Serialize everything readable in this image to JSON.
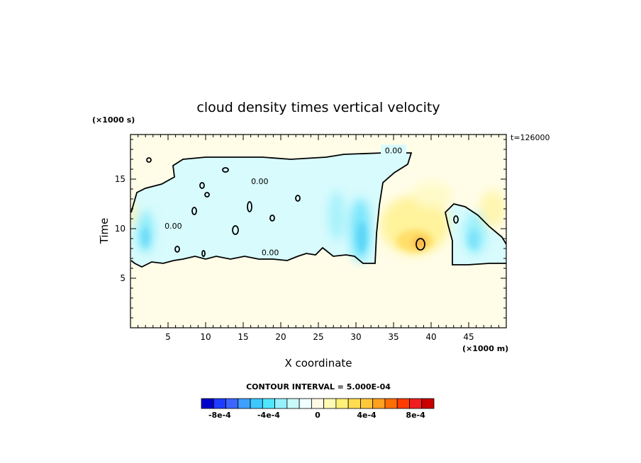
{
  "chart_data": {
    "type": "heatmap",
    "title": "cloud density times vertical velocity",
    "xlabel": "X coordinate",
    "ylabel": "Time",
    "x_unit": "(×1000 m)",
    "y_unit": "(×1000 s)",
    "annotation": "t=126000",
    "xlim": [
      0,
      50
    ],
    "ylim": [
      0,
      19.5
    ],
    "x_ticks": [
      5,
      10,
      15,
      20,
      25,
      30,
      35,
      40,
      45
    ],
    "y_ticks": [
      5,
      10,
      15
    ],
    "contour_labels": [
      {
        "text": "0.00",
        "x": 35,
        "y": 17.9
      },
      {
        "text": "0.00",
        "x": 17.2,
        "y": 14.8
      },
      {
        "text": "0.00",
        "x": 5.7,
        "y": 10.3
      },
      {
        "text": "0.00",
        "x": 18.6,
        "y": 7.6
      }
    ],
    "contour_interval_label": "CONTOUR INTERVAL = 5.000E-04",
    "colorbar": {
      "colors": [
        "#0000c8",
        "#1e3cff",
        "#3c64ff",
        "#3ca0ff",
        "#3cc8ff",
        "#50e6ff",
        "#96f0ff",
        "#c8fafa",
        "#f0ffff",
        "#fffae6",
        "#fffab4",
        "#fff078",
        "#ffdc50",
        "#ffc83c",
        "#ffa01e",
        "#ff6e00",
        "#ff3c00",
        "#f01e1e",
        "#c80000"
      ],
      "tick_labels": [
        "-8e-4",
        "-4e-4",
        "0",
        "4e-4",
        "8e-4"
      ],
      "tick_values": [
        -0.0008,
        -0.0004,
        0,
        0.0004,
        0.0008
      ],
      "vmin": -0.00095,
      "vmax": 0.00095
    },
    "features": [
      {
        "kind": "negative",
        "x": 2.5,
        "y": 10.2,
        "value": -0.00035
      },
      {
        "kind": "negative",
        "x": 30.3,
        "y": 10.5,
        "value": -0.0005
      },
      {
        "kind": "negative",
        "x": 28.5,
        "y": 11.5,
        "value": -0.00035
      },
      {
        "kind": "negative",
        "x": 46.5,
        "y": 10.2,
        "value": -0.0003
      },
      {
        "kind": "positive",
        "x": 38.5,
        "y": 9.0,
        "value": 0.0006
      },
      {
        "kind": "positive",
        "x": 37.5,
        "y": 11.5,
        "value": 0.0003
      },
      {
        "kind": "positive",
        "x": 48.5,
        "y": 11.8,
        "value": 0.00025
      },
      {
        "kind": "positive",
        "x": 0.2,
        "y": 11.5,
        "value": 0.0002
      }
    ]
  }
}
